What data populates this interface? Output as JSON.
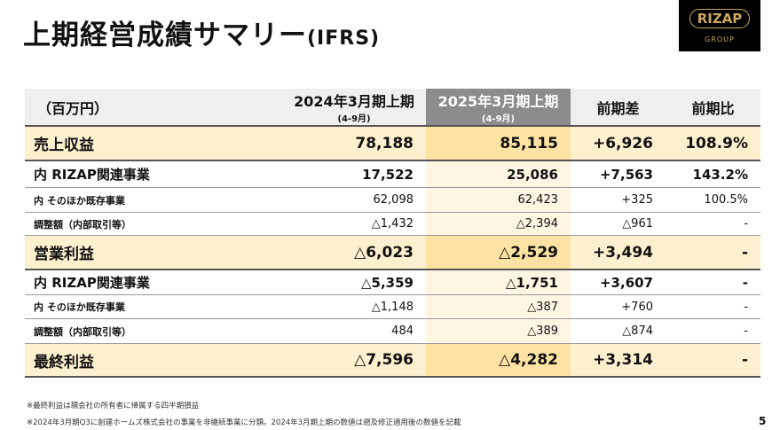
{
  "header": {
    "title": "上期経営成績サマリー",
    "title_suffix": "(IFRS)"
  },
  "logo": {
    "name": "RIZAP",
    "sub": "GROUP"
  },
  "table": {
    "columns": [
      {
        "label": "（百万円）"
      },
      {
        "label": "2024年3月期上期",
        "sub": "(4-9月)"
      },
      {
        "label": "2025年3月期上期",
        "sub": "(4-9月)"
      },
      {
        "label": "前期差"
      },
      {
        "label": "前期比"
      }
    ],
    "rows": [
      [
        "売上収益",
        "78,188",
        "85,115",
        "+6,926",
        "108.9%"
      ],
      [
        "内 RIZAP関連事業",
        "17,522",
        "25,086",
        "+7,563",
        "143.2%"
      ],
      [
        "内 そのほか既存事業",
        "62,098",
        "62,423",
        "+325",
        "100.5%"
      ],
      [
        "調整額（内部取引等）",
        "△1,432",
        "△2,394",
        "△961",
        "-"
      ],
      [
        "営業利益",
        "△6,023",
        "△2,529",
        "+3,494",
        "-"
      ],
      [
        "内 RIZAP関連事業",
        "△5,359",
        "△1,751",
        "+3,607",
        "-"
      ],
      [
        "内 そのほか既存事業",
        "△1,148",
        "△387",
        "+760",
        "-"
      ],
      [
        "調整額（内部取引等）",
        "484",
        "△389",
        "△874",
        "-"
      ],
      [
        "最終利益",
        "△7,596",
        "△4,282",
        "+3,314",
        "-"
      ]
    ]
  },
  "footnotes": [
    "※最終利益は親会社の所有者に帰属する四半期損益",
    "※2024年3月期Q3に創建ホームズ株式会社の事業を非継続事業に分類。2024年3月期上期の数値は遡及修正適用後の数値を記載"
  ],
  "page_number": "5"
}
